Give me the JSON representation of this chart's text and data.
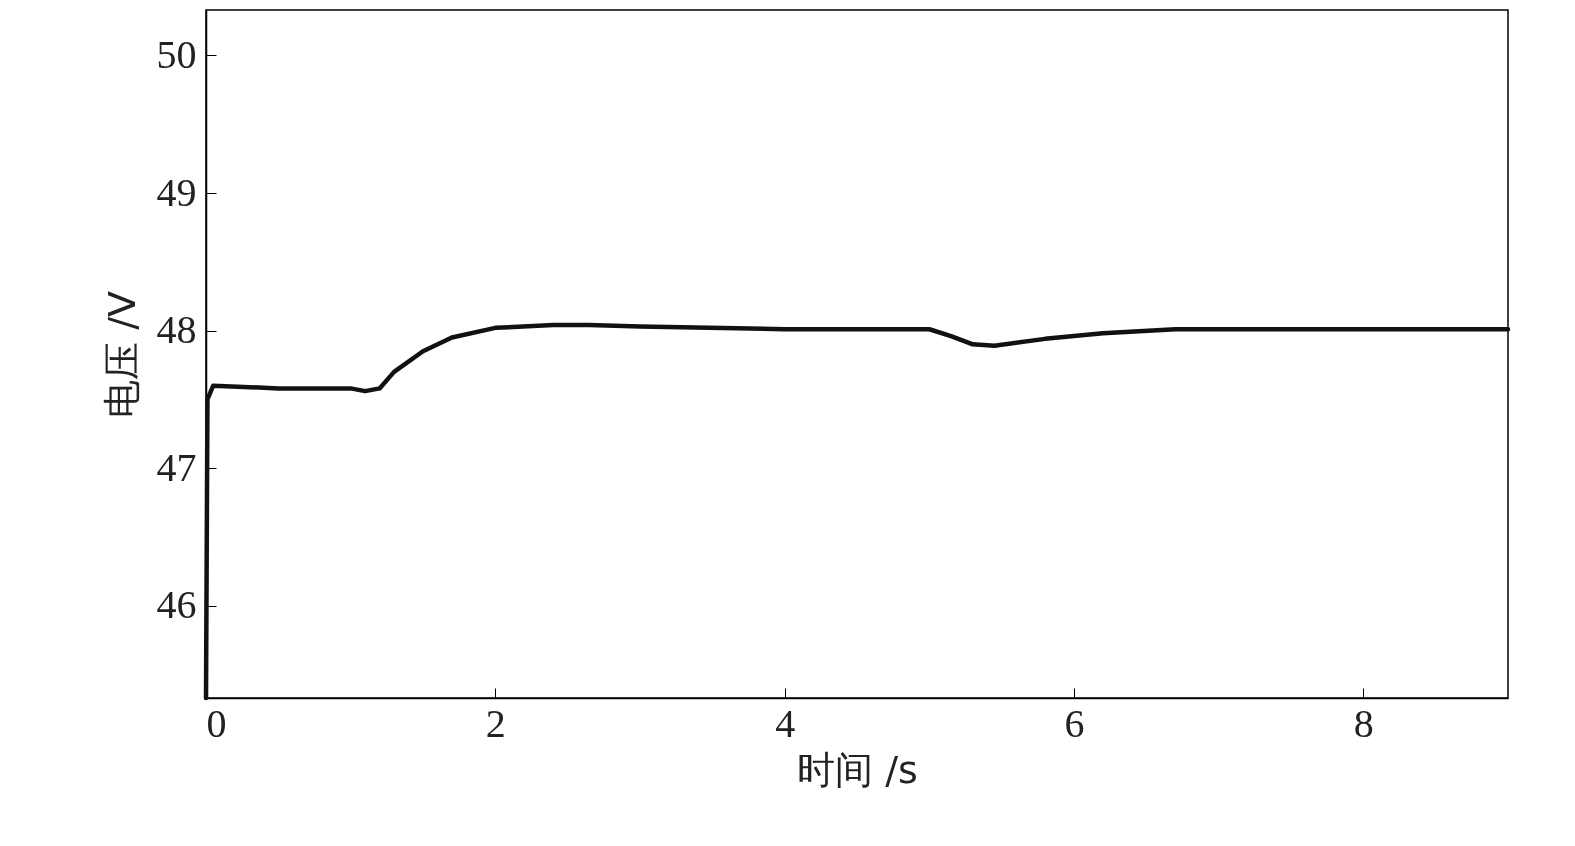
{
  "chart_data": {
    "type": "line",
    "xlabel": "时间 /s",
    "ylabel": "电压 /V",
    "xlim": [
      0,
      9
    ],
    "xticks": [
      0,
      2,
      4,
      6,
      8
    ],
    "ylim": [
      45.33,
      50.33
    ],
    "yticks": [
      46,
      47,
      48,
      49,
      50
    ],
    "grid": false,
    "marker": "none",
    "line_style": "solid",
    "x": [
      0,
      0.01,
      0.05,
      0.5,
      1.0,
      1.1,
      1.2,
      1.3,
      1.5,
      1.7,
      2.0,
      2.4,
      2.65,
      3,
      4,
      5,
      5.15,
      5.3,
      5.45,
      5.8,
      6.2,
      6.7,
      8,
      9
    ],
    "series": [
      {
        "color": "#111111",
        "values": [
          45.33,
          47.5,
          47.6,
          47.58,
          47.58,
          47.56,
          47.58,
          47.7,
          47.85,
          47.95,
          48.02,
          48.04,
          48.04,
          48.03,
          48.01,
          48.01,
          47.96,
          47.9,
          47.89,
          47.94,
          47.98,
          48.01,
          48.01,
          48.01
        ]
      }
    ]
  }
}
